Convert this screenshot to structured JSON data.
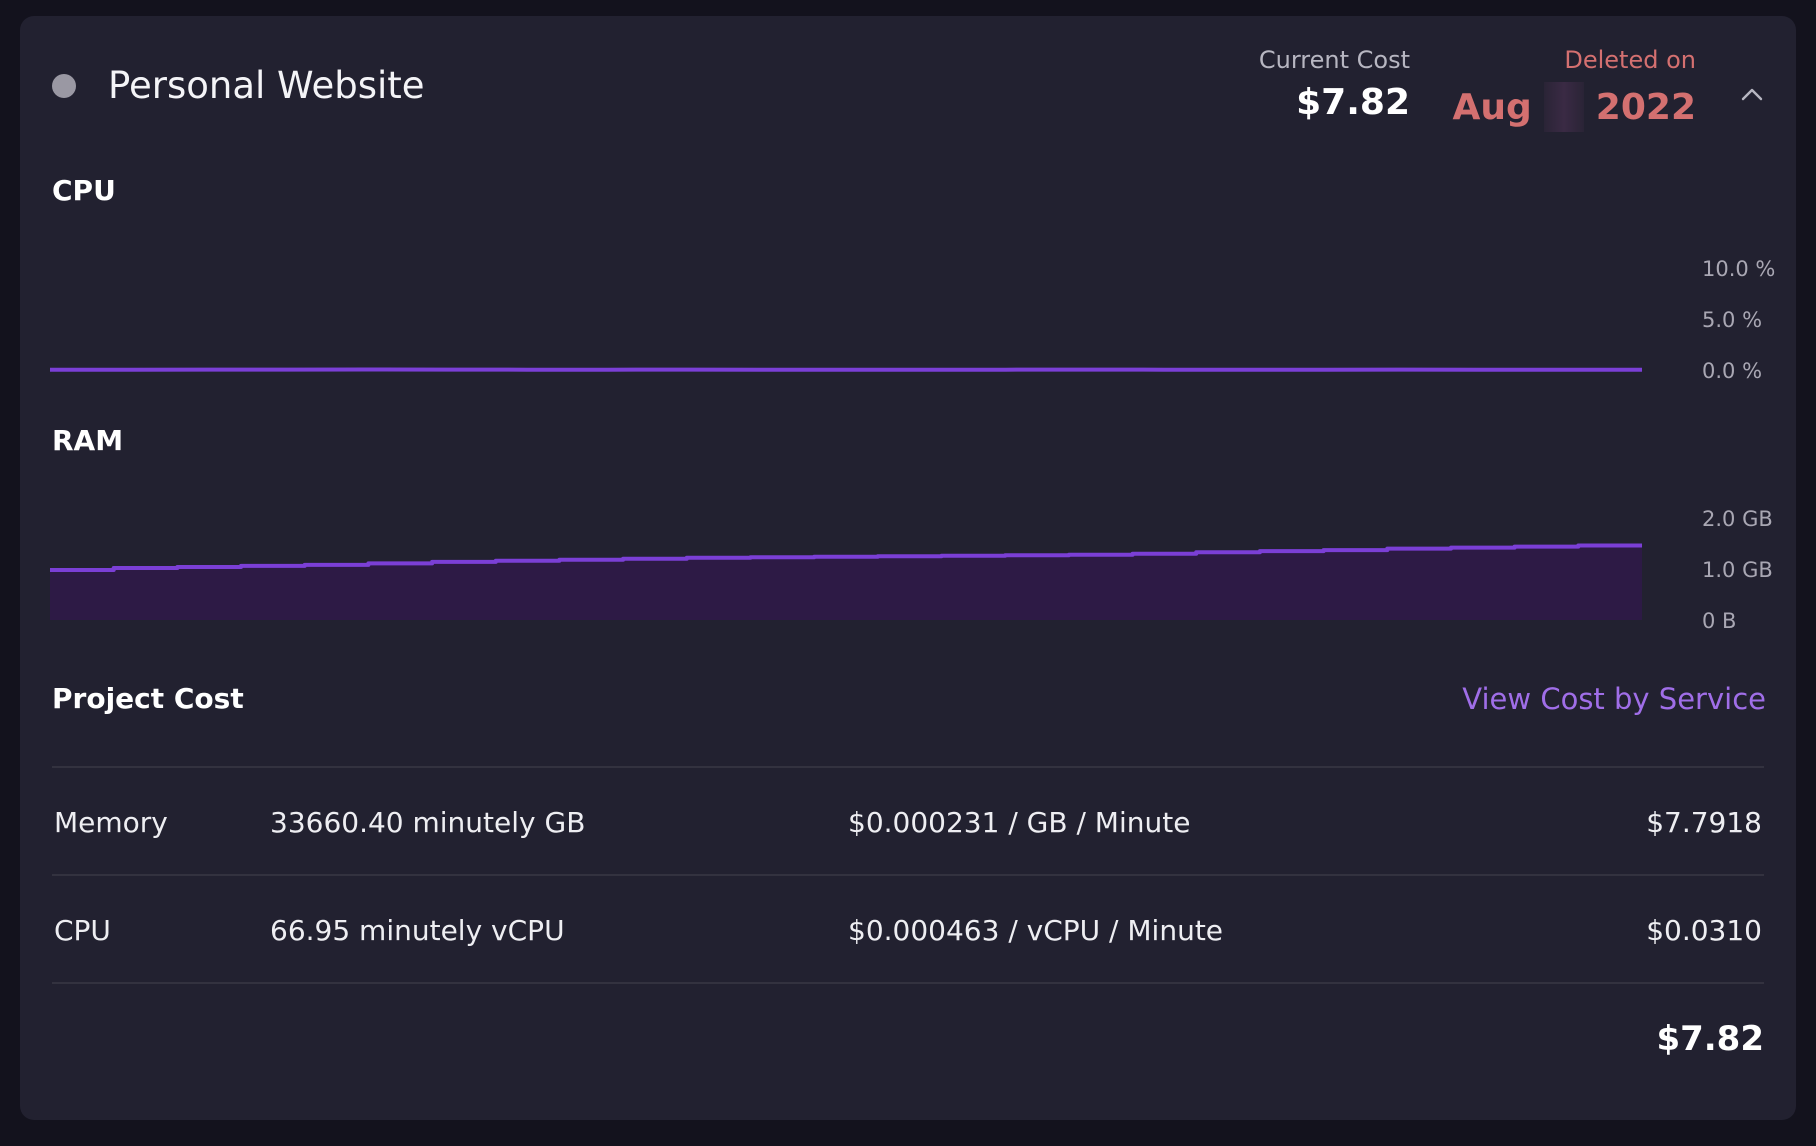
{
  "project": {
    "name": "Personal Website",
    "status_color": "#9a98a3"
  },
  "summary": {
    "current_cost_label": "Current Cost",
    "current_cost_value": "$7.82",
    "deleted_label": "Deleted on",
    "deleted_month": "Aug",
    "deleted_year": "2022",
    "collapse_icon": "chevron-up-icon"
  },
  "chart_data": [
    {
      "type": "line",
      "title": "CPU",
      "y_ticks": [
        "10.0 %",
        "5.0 %",
        "0.0 %"
      ],
      "ylim": [
        0,
        10
      ],
      "unit": "%",
      "series": [
        {
          "color": "#7b3fd6",
          "values": [
            0.03,
            0.03,
            0.04,
            0.04,
            0.05,
            0.04,
            0.03,
            0.03,
            0.04,
            0.03,
            0.03,
            0.02,
            0.03,
            0.04,
            0.03,
            0.03,
            0.03,
            0.04,
            0.03,
            0.02,
            0.02
          ]
        }
      ]
    },
    {
      "type": "area",
      "title": "RAM",
      "y_ticks": [
        "2.0 GB",
        "1.0 GB",
        "0 B"
      ],
      "ylim": [
        0,
        2
      ],
      "unit": "GB",
      "series": [
        {
          "color": "#7b3fd6",
          "fill": "#2d1a45",
          "values": [
            0.98,
            1.02,
            1.04,
            1.06,
            1.08,
            1.11,
            1.14,
            1.16,
            1.18,
            1.2,
            1.22,
            1.23,
            1.24,
            1.25,
            1.26,
            1.27,
            1.28,
            1.3,
            1.33,
            1.35,
            1.37,
            1.4,
            1.42,
            1.44,
            1.46
          ]
        }
      ]
    }
  ],
  "cost": {
    "title": "Project Cost",
    "view_link": "View Cost by Service",
    "rows": [
      {
        "name": "Memory",
        "usage": "33660.40 minutely GB",
        "rate": "$0.000231 / GB / Minute",
        "amount": "$7.7918"
      },
      {
        "name": "CPU",
        "usage": "66.95 minutely vCPU",
        "rate": "$0.000463 / vCPU / Minute",
        "amount": "$0.0310"
      }
    ],
    "total": "$7.82"
  }
}
